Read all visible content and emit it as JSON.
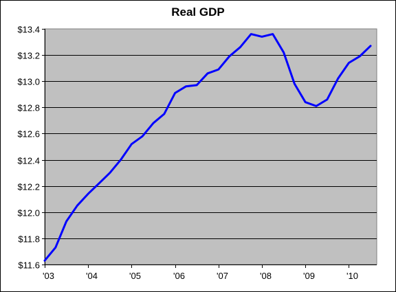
{
  "chart_data": {
    "type": "line",
    "title": "Real GDP",
    "xlabel": "",
    "ylabel": "",
    "x_tick_labels": [
      "'03",
      "'04",
      "'05",
      "'06",
      "'07",
      "'08",
      "'09",
      "'10"
    ],
    "y_tick_labels": [
      "$11.6",
      "$11.8",
      "$12.0",
      "$12.2",
      "$12.4",
      "$12.6",
      "$12.8",
      "$13.0",
      "$13.2",
      "$13.4"
    ],
    "ylim": [
      11.6,
      13.4
    ],
    "grid": "horizontal",
    "legend": "none",
    "colors": {
      "plot_background": "#c0c0c0",
      "line": "#0000ff",
      "gridline": "#000000"
    },
    "series": [
      {
        "x": [
          "2003 Q1",
          "2003 Q2",
          "2003 Q3",
          "2003 Q4",
          "2004 Q1",
          "2004 Q2",
          "2004 Q3",
          "2004 Q4",
          "2005 Q1",
          "2005 Q2",
          "2005 Q3",
          "2005 Q4",
          "2006 Q1",
          "2006 Q2",
          "2006 Q3",
          "2006 Q4",
          "2007 Q1",
          "2007 Q2",
          "2007 Q3",
          "2007 Q4",
          "2008 Q1",
          "2008 Q2",
          "2008 Q3",
          "2008 Q4",
          "2009 Q1",
          "2009 Q2",
          "2009 Q3",
          "2009 Q4",
          "2010 Q1",
          "2010 Q2",
          "2010 Q3"
        ],
        "values": [
          11.63,
          11.73,
          11.93,
          12.05,
          12.14,
          12.22,
          12.3,
          12.4,
          12.52,
          12.58,
          12.68,
          12.75,
          12.91,
          12.96,
          12.97,
          13.06,
          13.09,
          13.19,
          13.26,
          13.36,
          13.34,
          13.36,
          13.22,
          12.98,
          12.84,
          12.81,
          12.86,
          13.02,
          13.14,
          13.19,
          13.27
        ]
      }
    ]
  }
}
